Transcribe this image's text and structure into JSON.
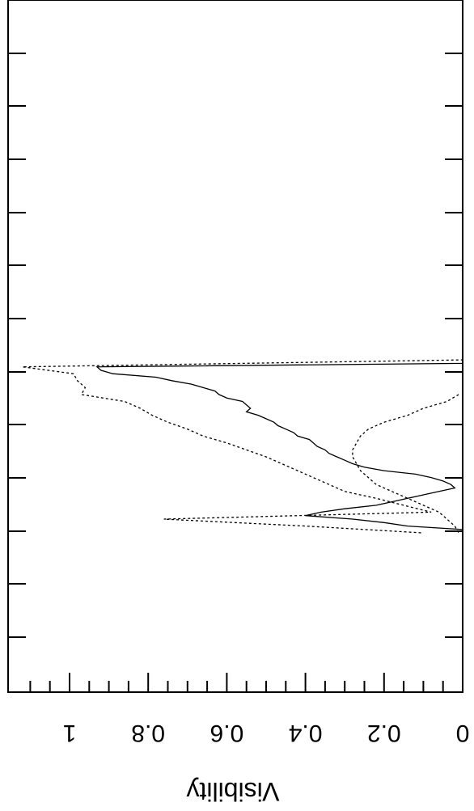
{
  "chart_data": {
    "type": "line",
    "ylabel": "Visibility",
    "ylim": [
      0,
      1.15
    ],
    "y_tick_labels": [
      "0",
      "0.2",
      "0.4",
      "0.6",
      "0.8",
      "1"
    ],
    "y_tick_values": [
      0,
      0.2,
      0.4,
      0.6,
      0.8,
      1
    ],
    "x_range": [
      0,
      1
    ],
    "grid": false,
    "series": [
      {
        "style": "solid",
        "x": [
          0.325,
          0.33,
          0.335,
          0.34,
          0.345,
          0.35,
          0.355,
          0.36,
          0.365,
          0.37,
          0.375,
          0.38,
          0.385,
          0.39,
          0.395,
          0.4,
          0.405,
          0.41,
          0.415,
          0.42,
          0.425,
          0.43,
          0.435,
          0.44,
          0.445,
          0.45,
          0.455,
          0.46,
          0.465,
          0.47,
          0.475,
          0.48,
          0.485,
          0.49,
          0.495,
          0.5,
          0.505,
          0.51,
          0.515,
          0.52,
          0.525,
          0.53,
          0.535,
          0.54,
          0.545,
          0.55,
          0.555,
          0.56,
          0.565,
          0.57,
          0.575,
          0.58,
          0.585,
          0.59,
          0.595,
          0.6,
          0.605,
          0.61,
          0.615,
          0.62,
          0.625,
          0.63,
          0.635,
          0.64,
          0.645,
          0.65,
          0.655,
          0.66,
          0.665,
          0.67,
          0.675,
          0.68,
          0.685,
          0.69,
          0.695,
          0.7,
          0.705,
          0.71,
          0.715,
          0.72,
          0.725,
          0.73,
          0.735,
          0.74,
          0.745,
          0.75,
          0.755,
          0.76,
          0.765,
          0.77,
          0.775,
          0.78,
          0.785,
          0.79,
          0.795,
          0.8
        ],
        "y": [
          0,
          0,
          0,
          0,
          0,
          0,
          0,
          0,
          0,
          0,
          0,
          0,
          0,
          0,
          0,
          0,
          0,
          0,
          0,
          0,
          0,
          0,
          0,
          0,
          0,
          0,
          0,
          0,
          0,
          0,
          0,
          0,
          0,
          0,
          0,
          0,
          0,
          0,
          0,
          0,
          0,
          0.93,
          0.92,
          0.89,
          0.78,
          0.74,
          0.69,
          0.66,
          0.63,
          0.62,
          0.6,
          0.56,
          0.55,
          0.54,
          0.55,
          0.52,
          0.5,
          0.48,
          0.47,
          0.45,
          0.43,
          0.42,
          0.39,
          0.38,
          0.37,
          0.35,
          0.34,
          0.32,
          0.3,
          0.28,
          0.25,
          0.2,
          0.12,
          0.08,
          0.05,
          0.03,
          0.02,
          0.06,
          0.1,
          0.14,
          0.18,
          0.22,
          0.3,
          0.36,
          0.4,
          0.28,
          0.2,
          0.14,
          0,
          0,
          0,
          0,
          0,
          0,
          0,
          0
        ]
      },
      {
        "style": "dotted",
        "x": [
          0.4,
          0.42,
          0.44,
          0.46,
          0.48,
          0.5,
          0.52,
          0.53,
          0.54,
          0.55,
          0.56,
          0.57,
          0.58,
          0.59,
          0.6,
          0.61,
          0.62,
          0.63,
          0.64,
          0.65,
          0.66,
          0.67,
          0.68,
          0.69,
          0.7,
          0.71,
          0.72,
          0.73,
          0.74,
          0.75,
          0.76,
          0.77
        ],
        "y": [
          0,
          0,
          0,
          0,
          0,
          0,
          0,
          1.12,
          0.99,
          0.98,
          0.96,
          0.97,
          0.86,
          0.82,
          0.79,
          0.75,
          0.7,
          0.66,
          0.6,
          0.55,
          0.5,
          0.46,
          0.42,
          0.38,
          0.34,
          0.3,
          0.22,
          0.15,
          0.08,
          0.76,
          0.4,
          0.1
        ]
      },
      {
        "style": "dotted",
        "x": [
          0.57,
          0.58,
          0.59,
          0.6,
          0.61,
          0.62,
          0.63,
          0.64,
          0.65,
          0.66,
          0.67,
          0.68,
          0.69,
          0.7,
          0.71,
          0.72,
          0.73,
          0.74,
          0.75,
          0.76,
          0.77
        ],
        "y": [
          0.01,
          0.04,
          0.1,
          0.14,
          0.2,
          0.24,
          0.26,
          0.27,
          0.28,
          0.28,
          0.27,
          0.26,
          0.24,
          0.22,
          0.18,
          0.14,
          0.1,
          0.06,
          0.04,
          0.02,
          0.01
        ]
      }
    ]
  }
}
